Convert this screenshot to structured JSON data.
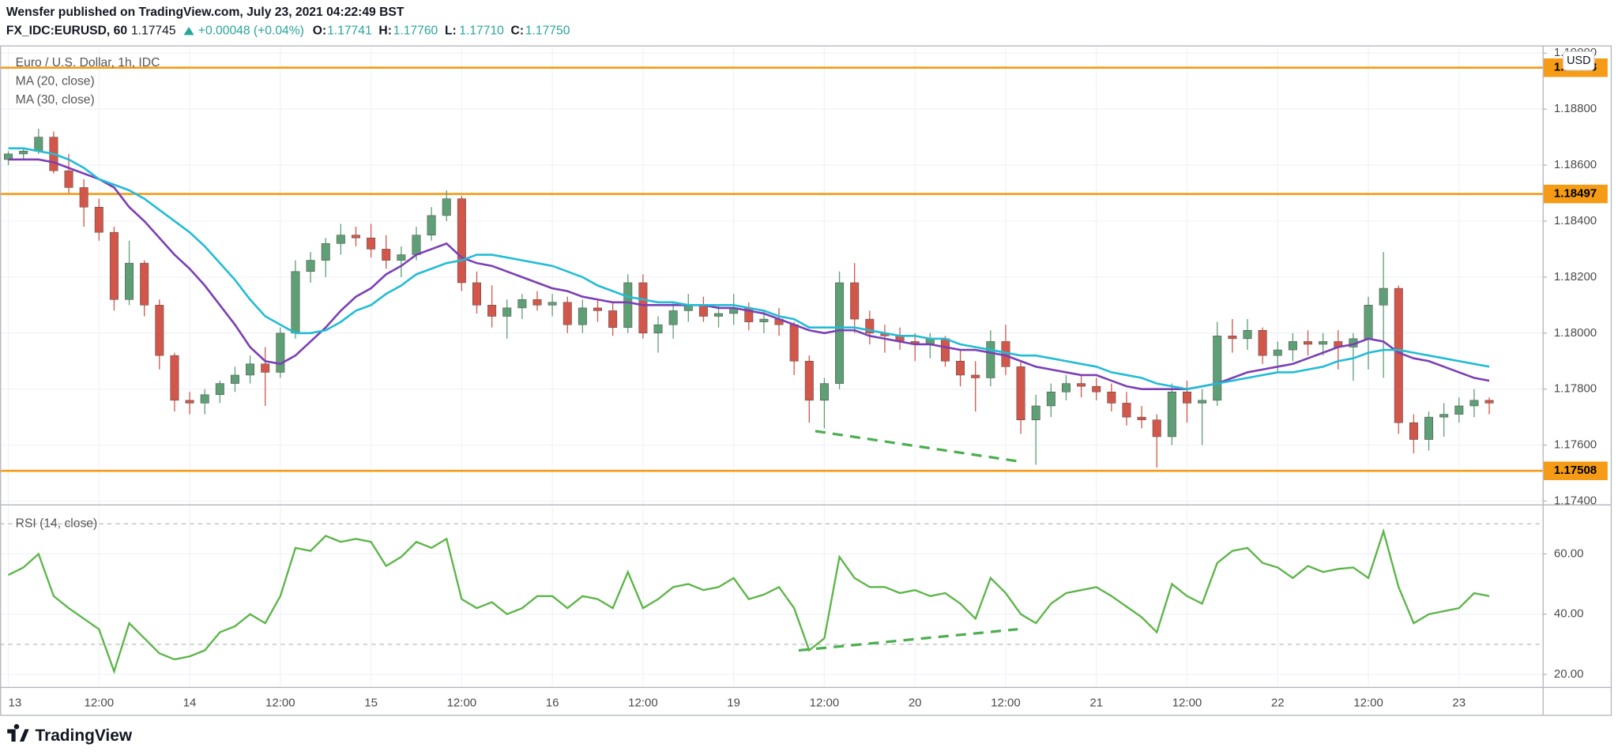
{
  "chart_data": {
    "type": "candlestick",
    "publisher": "Wensfer published on TradingView.com, July 23, 2021 04:22:49 BST",
    "symbol": "FX_IDC:EURUSD, 60",
    "last": "1.17745",
    "change": "+0.00048 (+0.04%)",
    "quote": [
      {
        "label": "O:",
        "value": "1.17741"
      },
      {
        "label": "H:",
        "value": "1.17760"
      },
      {
        "label": "L:",
        "value": "1.17710"
      },
      {
        "label": "C:",
        "value": "1.17750"
      }
    ],
    "title": "Euro / U.S. Dollar, 1h, IDC",
    "currency": "USD",
    "brand": "TradingView",
    "up_color": "#5f9f75",
    "down_color": "#d2574a",
    "categories": [
      "13",
      null,
      null,
      null,
      null,
      null,
      "12:00",
      null,
      null,
      null,
      null,
      null,
      "14",
      null,
      null,
      null,
      null,
      null,
      "12:00",
      null,
      null,
      null,
      null,
      null,
      "15",
      null,
      null,
      null,
      null,
      null,
      "12:00",
      null,
      null,
      null,
      null,
      null,
      "16",
      null,
      null,
      null,
      null,
      null,
      "12:00",
      null,
      null,
      null,
      null,
      null,
      "19",
      null,
      null,
      null,
      null,
      null,
      "12:00",
      null,
      null,
      null,
      null,
      null,
      "20",
      null,
      null,
      null,
      null,
      null,
      "12:00",
      null,
      null,
      null,
      null,
      null,
      "21",
      null,
      null,
      null,
      null,
      null,
      "12:00",
      null,
      null,
      null,
      null,
      null,
      "22",
      null,
      null,
      null,
      null,
      null,
      "12:00",
      null,
      null,
      null,
      null,
      null,
      "23",
      null,
      null
    ],
    "ohlc": [
      [
        1.1862,
        1.1865,
        1.186,
        1.1864
      ],
      [
        1.1864,
        1.1866,
        1.1862,
        1.1865
      ],
      [
        1.1865,
        1.1873,
        1.1864,
        1.187
      ],
      [
        1.187,
        1.1872,
        1.1857,
        1.1858
      ],
      [
        1.1858,
        1.1864,
        1.185,
        1.1852
      ],
      [
        1.1852,
        1.1855,
        1.1838,
        1.1845
      ],
      [
        1.1845,
        1.1848,
        1.1833,
        1.1836
      ],
      [
        1.1836,
        1.1838,
        1.1808,
        1.1812
      ],
      [
        1.1812,
        1.1833,
        1.181,
        1.1825
      ],
      [
        1.1825,
        1.1826,
        1.1806,
        1.181
      ],
      [
        1.181,
        1.1812,
        1.1787,
        1.1792
      ],
      [
        1.1792,
        1.1793,
        1.1772,
        1.1776
      ],
      [
        1.1776,
        1.1779,
        1.1771,
        1.1775
      ],
      [
        1.1775,
        1.178,
        1.1771,
        1.1778
      ],
      [
        1.1778,
        1.1783,
        1.1775,
        1.1782
      ],
      [
        1.1782,
        1.1788,
        1.1779,
        1.1785
      ],
      [
        1.1785,
        1.1792,
        1.1782,
        1.1789
      ],
      [
        1.1789,
        1.1795,
        1.1774,
        1.1786
      ],
      [
        1.1786,
        1.1802,
        1.1784,
        1.18
      ],
      [
        1.18,
        1.1826,
        1.1798,
        1.1822
      ],
      [
        1.1822,
        1.1829,
        1.1818,
        1.1826
      ],
      [
        1.1826,
        1.1834,
        1.182,
        1.1832
      ],
      [
        1.1832,
        1.1839,
        1.1828,
        1.1835
      ],
      [
        1.1835,
        1.1838,
        1.1831,
        1.1834
      ],
      [
        1.1834,
        1.1839,
        1.1827,
        1.183
      ],
      [
        1.183,
        1.1835,
        1.1823,
        1.1826
      ],
      [
        1.1826,
        1.1831,
        1.182,
        1.1828
      ],
      [
        1.1828,
        1.1838,
        1.1826,
        1.1835
      ],
      [
        1.1835,
        1.1845,
        1.1833,
        1.1842
      ],
      [
        1.1842,
        1.1851,
        1.184,
        1.1848
      ],
      [
        1.1848,
        1.1849,
        1.1815,
        1.1818
      ],
      [
        1.1818,
        1.1822,
        1.1807,
        1.181
      ],
      [
        1.181,
        1.1817,
        1.1802,
        1.1806
      ],
      [
        1.1806,
        1.1812,
        1.1798,
        1.1809
      ],
      [
        1.1809,
        1.1814,
        1.1805,
        1.1812
      ],
      [
        1.1812,
        1.1815,
        1.1808,
        1.181
      ],
      [
        1.181,
        1.1814,
        1.1806,
        1.1811
      ],
      [
        1.1811,
        1.1813,
        1.18,
        1.1803
      ],
      [
        1.1803,
        1.1812,
        1.18,
        1.1809
      ],
      [
        1.1809,
        1.1812,
        1.1804,
        1.1808
      ],
      [
        1.1808,
        1.1811,
        1.1799,
        1.1802
      ],
      [
        1.1802,
        1.1821,
        1.18,
        1.1818
      ],
      [
        1.1818,
        1.1821,
        1.1798,
        1.18
      ],
      [
        1.18,
        1.1806,
        1.1793,
        1.1803
      ],
      [
        1.1803,
        1.1811,
        1.1798,
        1.1808
      ],
      [
        1.1808,
        1.1814,
        1.1804,
        1.181
      ],
      [
        1.181,
        1.1813,
        1.1804,
        1.1806
      ],
      [
        1.1806,
        1.181,
        1.1802,
        1.1807
      ],
      [
        1.1807,
        1.1814,
        1.1803,
        1.1809
      ],
      [
        1.1809,
        1.1811,
        1.1801,
        1.1804
      ],
      [
        1.1804,
        1.1808,
        1.18,
        1.1805
      ],
      [
        1.1805,
        1.1809,
        1.1799,
        1.1803
      ],
      [
        1.1803,
        1.1804,
        1.1785,
        1.179
      ],
      [
        1.179,
        1.1792,
        1.1768,
        1.1776
      ],
      [
        1.1776,
        1.1784,
        1.1766,
        1.1782
      ],
      [
        1.1782,
        1.1822,
        1.178,
        1.1818
      ],
      [
        1.1818,
        1.1825,
        1.18,
        1.1805
      ],
      [
        1.1805,
        1.1808,
        1.1796,
        1.18
      ],
      [
        1.18,
        1.1803,
        1.1793,
        1.1799
      ],
      [
        1.1799,
        1.1802,
        1.1794,
        1.1797
      ],
      [
        1.1797,
        1.18,
        1.179,
        1.1796
      ],
      [
        1.1796,
        1.18,
        1.1791,
        1.1798
      ],
      [
        1.1798,
        1.1799,
        1.1788,
        1.179
      ],
      [
        1.179,
        1.1794,
        1.1781,
        1.1785
      ],
      [
        1.1785,
        1.179,
        1.1772,
        1.1784
      ],
      [
        1.1784,
        1.1801,
        1.1781,
        1.1797
      ],
      [
        1.1797,
        1.1803,
        1.1785,
        1.1788
      ],
      [
        1.1788,
        1.179,
        1.1764,
        1.1769
      ],
      [
        1.1769,
        1.1778,
        1.1753,
        1.1774
      ],
      [
        1.1774,
        1.1782,
        1.177,
        1.1779
      ],
      [
        1.1779,
        1.1785,
        1.1776,
        1.1782
      ],
      [
        1.1782,
        1.1785,
        1.1777,
        1.1781
      ],
      [
        1.1781,
        1.1784,
        1.1776,
        1.1779
      ],
      [
        1.1779,
        1.1782,
        1.1772,
        1.1775
      ],
      [
        1.1775,
        1.1779,
        1.1767,
        1.177
      ],
      [
        1.177,
        1.1774,
        1.1766,
        1.1769
      ],
      [
        1.1769,
        1.1771,
        1.1752,
        1.1763
      ],
      [
        1.1763,
        1.1782,
        1.176,
        1.1779
      ],
      [
        1.1779,
        1.1783,
        1.1768,
        1.1775
      ],
      [
        1.1775,
        1.178,
        1.176,
        1.1776
      ],
      [
        1.1776,
        1.1804,
        1.1774,
        1.1799
      ],
      [
        1.1799,
        1.1805,
        1.1793,
        1.1798
      ],
      [
        1.1798,
        1.1805,
        1.1794,
        1.1801
      ],
      [
        1.1801,
        1.1802,
        1.1789,
        1.1792
      ],
      [
        1.1792,
        1.1797,
        1.1786,
        1.1794
      ],
      [
        1.1794,
        1.18,
        1.179,
        1.1797
      ],
      [
        1.1797,
        1.1801,
        1.1792,
        1.1796
      ],
      [
        1.1796,
        1.18,
        1.1792,
        1.1797
      ],
      [
        1.1797,
        1.1801,
        1.1787,
        1.1795
      ],
      [
        1.1795,
        1.18,
        1.1783,
        1.1798
      ],
      [
        1.1798,
        1.1813,
        1.1787,
        1.181
      ],
      [
        1.181,
        1.1829,
        1.1784,
        1.1816
      ],
      [
        1.1816,
        1.1817,
        1.1764,
        1.1768
      ],
      [
        1.1768,
        1.1771,
        1.1757,
        1.1762
      ],
      [
        1.1762,
        1.1772,
        1.1758,
        1.177
      ],
      [
        1.177,
        1.1775,
        1.1763,
        1.1771
      ],
      [
        1.1771,
        1.1777,
        1.1768,
        1.1774
      ],
      [
        1.1774,
        1.178,
        1.177,
        1.1776
      ],
      [
        1.1776,
        1.1777,
        1.1771,
        1.1775
      ]
    ],
    "series": [
      {
        "name": "MA (20, close)",
        "color": "#7b3fb5",
        "values": [
          1.1862,
          1.1862,
          1.1862,
          1.1861,
          1.1859,
          1.1857,
          1.1855,
          1.1852,
          1.1845,
          1.184,
          1.1834,
          1.1828,
          1.1823,
          1.1817,
          1.181,
          1.1803,
          1.1795,
          1.179,
          1.1789,
          1.1792,
          1.1797,
          1.1802,
          1.1808,
          1.1813,
          1.1816,
          1.1821,
          1.1824,
          1.1828,
          1.183,
          1.1832,
          1.1827,
          1.1825,
          1.1824,
          1.1822,
          1.182,
          1.1818,
          1.1816,
          1.1815,
          1.1813,
          1.1812,
          1.1811,
          1.1811,
          1.181,
          1.181,
          1.181,
          1.181,
          1.181,
          1.1809,
          1.1809,
          1.1808,
          1.1807,
          1.1805,
          1.1803,
          1.1801,
          1.18,
          1.1801,
          1.1801,
          1.1799,
          1.1798,
          1.1797,
          1.1796,
          1.1796,
          1.1795,
          1.1794,
          1.1794,
          1.1793,
          1.1792,
          1.179,
          1.1788,
          1.1787,
          1.1786,
          1.1785,
          1.1785,
          1.1783,
          1.1781,
          1.178,
          1.178,
          1.178,
          1.178,
          1.1781,
          1.1782,
          1.1784,
          1.1786,
          1.1787,
          1.1788,
          1.1789,
          1.1791,
          1.1793,
          1.1795,
          1.1796,
          1.1798,
          1.1797,
          1.1793,
          1.1791,
          1.179,
          1.1788,
          1.1786,
          1.1784,
          1.1783
        ]
      },
      {
        "name": "MA (30, close)",
        "color": "#22bcd6",
        "values": [
          1.1866,
          1.1866,
          1.1865,
          1.1864,
          1.1862,
          1.1859,
          1.1855,
          1.1853,
          1.1851,
          1.1848,
          1.1844,
          1.184,
          1.1836,
          1.1831,
          1.1825,
          1.1819,
          1.1812,
          1.1806,
          1.1803,
          1.18,
          1.18,
          1.1801,
          1.1804,
          1.1808,
          1.181,
          1.1814,
          1.1817,
          1.1821,
          1.1823,
          1.1825,
          1.1826,
          1.1828,
          1.1828,
          1.1827,
          1.1826,
          1.1825,
          1.1824,
          1.1822,
          1.182,
          1.1817,
          1.1815,
          1.1813,
          1.1812,
          1.1811,
          1.1811,
          1.181,
          1.181,
          1.181,
          1.181,
          1.1809,
          1.1808,
          1.1806,
          1.1805,
          1.1802,
          1.1802,
          1.1802,
          1.1802,
          1.1801,
          1.18,
          1.1799,
          1.1799,
          1.1798,
          1.1798,
          1.1796,
          1.1795,
          1.1794,
          1.1793,
          1.1792,
          1.1792,
          1.1791,
          1.179,
          1.1789,
          1.1788,
          1.1786,
          1.1785,
          1.1784,
          1.1782,
          1.1781,
          1.178,
          1.1781,
          1.1782,
          1.1783,
          1.1784,
          1.1785,
          1.1786,
          1.1786,
          1.1787,
          1.1788,
          1.179,
          1.1791,
          1.1793,
          1.1794,
          1.1794,
          1.1793,
          1.1792,
          1.1791,
          1.179,
          1.1789,
          1.1788
        ]
      }
    ],
    "levels": [
      {
        "value": 1.18948,
        "color": "#f59b16"
      },
      {
        "value": 1.18497,
        "color": "#f59b16"
      },
      {
        "value": 1.17508,
        "color": "#f59b16"
      }
    ],
    "trendline": {
      "x": [
        53.4,
        67.1
      ],
      "y": [
        1.1765,
        1.1754
      ],
      "color": "#4caf50"
    },
    "ylim": [
      1.17392,
      1.19024
    ],
    "yticks": [
      {
        "value": 1.174,
        "label": "1.17400"
      },
      {
        "value": 1.176,
        "label": "1.17600"
      },
      {
        "value": 1.178,
        "label": "1.17800"
      },
      {
        "value": 1.18,
        "label": "1.18000"
      },
      {
        "value": 1.182,
        "label": "1.18200"
      },
      {
        "value": 1.184,
        "label": "1.18400"
      },
      {
        "value": 1.186,
        "label": "1.18600"
      },
      {
        "value": 1.188,
        "label": "1.18800"
      },
      {
        "value": 1.19,
        "label": "1.19000"
      }
    ],
    "grid": true,
    "rsi": {
      "title": "RSI (14, close)",
      "color": "#5cb548",
      "values": [
        53,
        55.5,
        60,
        46,
        42,
        38.5,
        35,
        21,
        37,
        32,
        27,
        25,
        26,
        28,
        34,
        36,
        40,
        37,
        46,
        62,
        61,
        66,
        64,
        65,
        64,
        56,
        59,
        64,
        62,
        65,
        45,
        42,
        44,
        40,
        42,
        46,
        46,
        42,
        46,
        45,
        42,
        54,
        42,
        45,
        49,
        50,
        48,
        49,
        52,
        45,
        46.5,
        49,
        42,
        28,
        32,
        59,
        52,
        49,
        49,
        47,
        48,
        46,
        47,
        43.5,
        38.5,
        52,
        47,
        40,
        37,
        43.5,
        47,
        48,
        49,
        46,
        42.5,
        39,
        34,
        50,
        46,
        43.5,
        57,
        61,
        62,
        57,
        55.5,
        52,
        56,
        54,
        55,
        55.5,
        52,
        67.5,
        49,
        37,
        40,
        41,
        42,
        47,
        46
      ],
      "bands": [
        70,
        30
      ],
      "trendline": {
        "x": [
          52.3,
          66.8
        ],
        "y": [
          28,
          35
        ],
        "color": "#4caf50"
      },
      "ylim": [
        16.2,
        76.1
      ],
      "yticks": [
        {
          "value": 20,
          "label": "20.00"
        },
        {
          "value": 40,
          "label": "40.00"
        },
        {
          "value": 60,
          "label": "60.00"
        }
      ]
    }
  }
}
